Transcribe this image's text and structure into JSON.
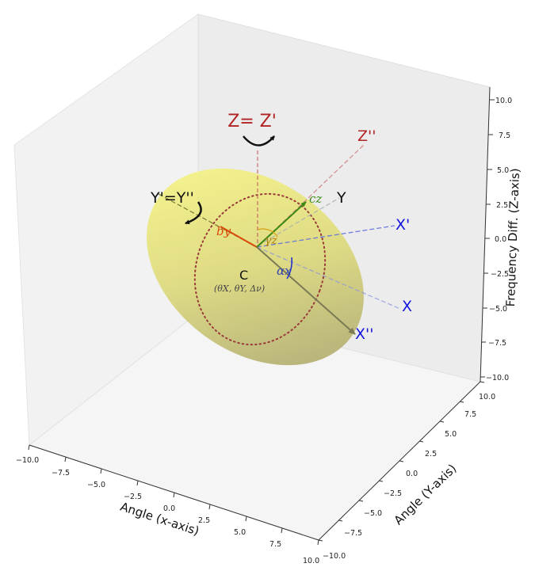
{
  "axes": {
    "x": {
      "title": "Angle (x-axis)",
      "ticks": [
        "−10.0",
        "−7.5",
        "−5.0",
        "−2.5",
        "0.0",
        "2.5",
        "5.0",
        "7.5",
        "10.0"
      ]
    },
    "y": {
      "title": "Angle (Y-axis)",
      "ticks": [
        "−10.0",
        "−7.5",
        "−5.0",
        "−2.5",
        "0.0",
        "2.5",
        "5.0",
        "7.5",
        "10.0"
      ]
    },
    "z": {
      "title": "Frequency Diff. (Z-axis)",
      "ticks": [
        "−10.0",
        "−7.5",
        "−5.0",
        "−2.5",
        "0.0",
        "2.5",
        "5.0",
        "7.5",
        "10.0"
      ]
    }
  },
  "labels": {
    "z_axis": "Z= Z'",
    "z_double": "Z''",
    "y_axis": "Y'=Y''",
    "y": "Y",
    "x_prime": "X'",
    "x": "X",
    "x_double": "X''",
    "center": "C",
    "center_coords": "(θX, θY, Δν)",
    "b_y": "by",
    "c_z": "cz",
    "gamma": "γz",
    "alpha": "αx"
  },
  "colors": {
    "z_label": "#b22222",
    "x_label": "#1515e0",
    "y_label": "#111111",
    "b_y": "#d94a0a",
    "c_z": "#3a8a12",
    "gamma": "#b07a0a",
    "alpha": "#3040b0",
    "ellipsoid": "#e0dc6a",
    "ring": "#9a3a3a",
    "x_double_arrow": "#7a7a55"
  }
}
